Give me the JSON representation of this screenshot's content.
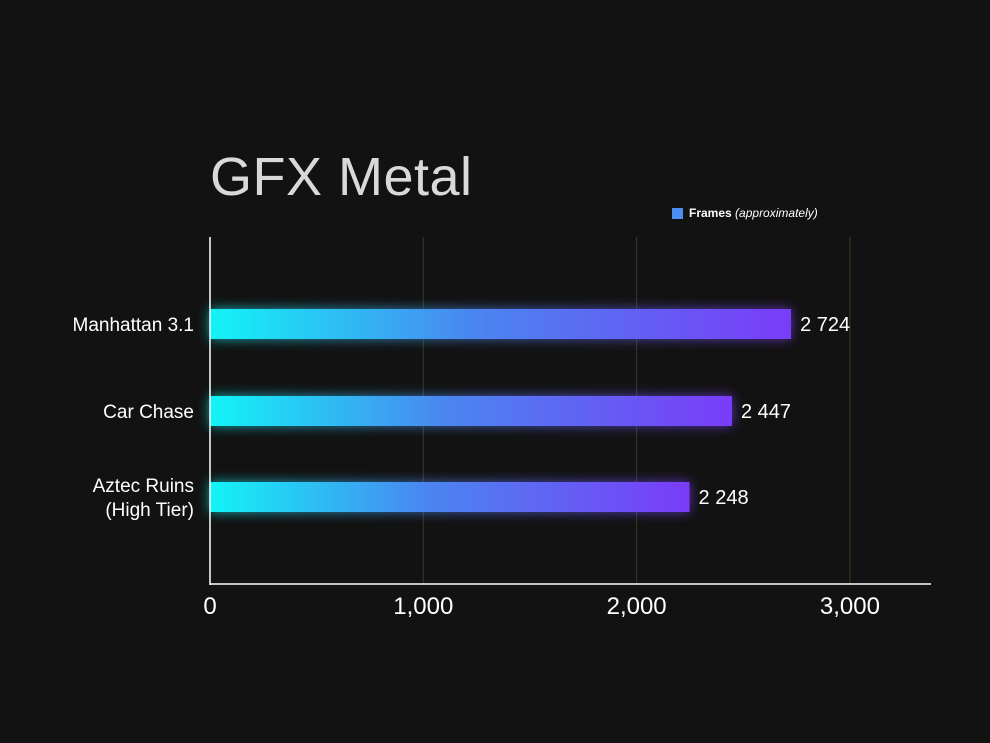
{
  "chart_data": {
    "type": "bar",
    "orientation": "horizontal",
    "title": "GFX Metal",
    "categories": [
      "Manhattan 3.1",
      "Car Chase",
      "Aztec Ruins\n(High Tier)"
    ],
    "series": [
      {
        "name": "Frames",
        "name_suffix": "(approximately)",
        "values": [
          2724,
          2447,
          2248
        ],
        "value_labels": [
          "2 724",
          "2 447",
          "2 248"
        ]
      }
    ],
    "x_ticks": [
      0,
      1000,
      2000,
      3000
    ],
    "x_tick_labels": [
      "0",
      "1,000",
      "2,000",
      "3,000"
    ],
    "xlim": [
      0,
      3380
    ],
    "xlabel": "",
    "ylabel": "",
    "grid": "vertical",
    "legend_position": "top-right",
    "colors": {
      "background": "#121212",
      "bar_start": "#12f4f6",
      "bar_mid": "#4a86f0",
      "bar_end": "#7a3cf8",
      "grid": "#3a3a22",
      "axis": "#ffffff",
      "text": "#ffffff",
      "title": "#d9d9d9",
      "legend_swatch": "#4a8ef2"
    }
  }
}
